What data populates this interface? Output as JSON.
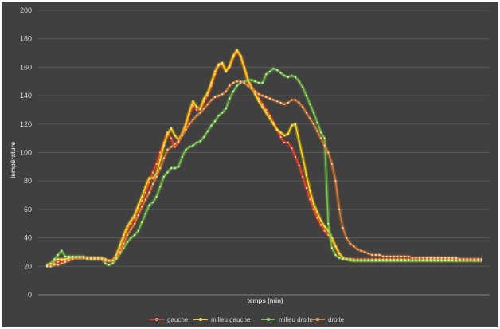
{
  "chart_data": {
    "type": "line",
    "title": "",
    "xlabel": "temps (min)",
    "ylabel": "température",
    "ylim": [
      0,
      200
    ],
    "yticks": [
      0,
      20,
      40,
      60,
      80,
      100,
      120,
      140,
      160,
      180,
      200
    ],
    "grid": "horizontal",
    "legend_position": "bottom",
    "background": "#404040",
    "series": [
      {
        "name": "gauche",
        "color": "#ff3b1f",
        "values": [
          20,
          21,
          22,
          23,
          24,
          24,
          25,
          26,
          26,
          26,
          26,
          26,
          25,
          25,
          25,
          25,
          24,
          24,
          24,
          27,
          33,
          40,
          46,
          50,
          54,
          61,
          66,
          72,
          79,
          86,
          92,
          100,
          107,
          114,
          110,
          104,
          107,
          113,
          118,
          127,
          133,
          130,
          130,
          136,
          140,
          147,
          155,
          161,
          162,
          158,
          160,
          167,
          171,
          168,
          159,
          150,
          146,
          142,
          138,
          134,
          130,
          126,
          121,
          116,
          111,
          107,
          107,
          103,
          97,
          91,
          83,
          75,
          67,
          60,
          54,
          49,
          45,
          42,
          38,
          34,
          29,
          26,
          25,
          25,
          25,
          25,
          25,
          25,
          25,
          25,
          25,
          25,
          25,
          25,
          25,
          25,
          25,
          25,
          25,
          25,
          25,
          25,
          25,
          25,
          25,
          25,
          25,
          25,
          25,
          25,
          25,
          25,
          25,
          25,
          25,
          25,
          25,
          25,
          25,
          25
        ]
      },
      {
        "name": "milieu gauche",
        "color": "#ffd400",
        "values": [
          21,
          22,
          24,
          25,
          25,
          25,
          26,
          26,
          26,
          26,
          26,
          26,
          26,
          26,
          26,
          26,
          25,
          24,
          24,
          28,
          35,
          42,
          48,
          52,
          56,
          63,
          69,
          76,
          82,
          82,
          85,
          95,
          105,
          113,
          117,
          112,
          109,
          113,
          120,
          129,
          136,
          132,
          131,
          138,
          142,
          149,
          157,
          162,
          163,
          157,
          161,
          168,
          172,
          168,
          160,
          151,
          146,
          141,
          136,
          132,
          128,
          124,
          120,
          116,
          114,
          112,
          113,
          119,
          120,
          108,
          97,
          84,
          73,
          64,
          58,
          52,
          48,
          45,
          40,
          34,
          29,
          26,
          25,
          25,
          24,
          24,
          24,
          24,
          24,
          24,
          24,
          24,
          24,
          24,
          24,
          24,
          24,
          24,
          24,
          24,
          24,
          24,
          24,
          24,
          24,
          24,
          24,
          24,
          24,
          24,
          24,
          24,
          24,
          24,
          24,
          24,
          24,
          24,
          24,
          24
        ]
      },
      {
        "name": "milieu droite",
        "color": "#70c63c",
        "values": [
          20,
          20,
          25,
          28,
          31,
          27,
          27,
          27,
          27,
          27,
          27,
          25,
          25,
          25,
          25,
          25,
          22,
          21,
          22,
          25,
          29,
          33,
          37,
          40,
          42,
          45,
          51,
          57,
          63,
          65,
          69,
          76,
          83,
          86,
          89,
          89,
          90,
          97,
          102,
          104,
          105,
          107,
          108,
          111,
          115,
          119,
          122,
          126,
          128,
          131,
          138,
          143,
          147,
          149,
          150,
          151,
          151,
          150,
          149,
          149,
          155,
          157,
          159,
          158,
          156,
          154,
          153,
          154,
          153,
          150,
          146,
          140,
          134,
          128,
          121,
          114,
          110,
          50,
          33,
          28,
          26,
          25,
          25,
          24,
          24,
          24,
          24,
          24,
          24,
          24,
          24,
          24,
          24,
          24,
          24,
          24,
          24,
          24,
          24,
          24,
          24,
          24,
          24,
          24,
          24,
          24,
          24,
          24,
          24,
          24,
          24,
          24,
          24,
          24,
          24,
          24,
          24,
          24,
          24,
          24
        ]
      },
      {
        "name": "droite",
        "color": "#e07b2a",
        "values": [
          20,
          20,
          21,
          21,
          22,
          23,
          24,
          25,
          26,
          26,
          26,
          26,
          26,
          26,
          26,
          25,
          24,
          24,
          24,
          26,
          30,
          36,
          42,
          46,
          50,
          56,
          62,
          67,
          72,
          78,
          83,
          89,
          96,
          102,
          104,
          106,
          108,
          112,
          116,
          120,
          123,
          126,
          128,
          131,
          134,
          137,
          139,
          140,
          141,
          143,
          147,
          149,
          150,
          150,
          149,
          147,
          145,
          143,
          141,
          140,
          139,
          138,
          137,
          136,
          135,
          134,
          135,
          137,
          137,
          135,
          132,
          128,
          124,
          120,
          115,
          110,
          105,
          100,
          92,
          80,
          60,
          47,
          40,
          36,
          34,
          32,
          31,
          30,
          29,
          28,
          28,
          28,
          27,
          27,
          27,
          27,
          27,
          27,
          27,
          27,
          26,
          26,
          26,
          26,
          26,
          26,
          26,
          26,
          26,
          26,
          26,
          26,
          26,
          25,
          25,
          25,
          25,
          25,
          25,
          25
        ]
      }
    ]
  }
}
